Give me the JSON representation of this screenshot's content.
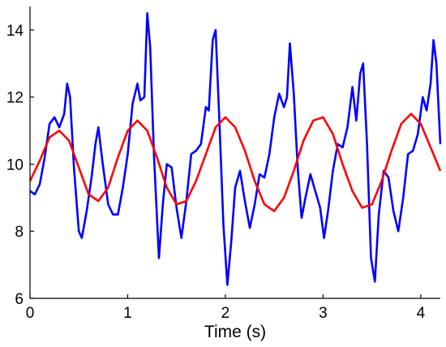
{
  "chart_data": {
    "type": "line",
    "title": "",
    "xlabel": "Time (s)",
    "ylabel": "",
    "xlim": [
      0,
      4.2
    ],
    "ylim": [
      6,
      14.7
    ],
    "x_ticks": [
      "0",
      "1",
      "2",
      "3",
      "4"
    ],
    "y_ticks": [
      "6",
      "8",
      "10",
      "12",
      "14"
    ],
    "grid": false,
    "legend": "none",
    "series": [
      {
        "color": "#0000ff",
        "points": [
          [
            0,
            9.2
          ],
          [
            0.05,
            9.1
          ],
          [
            0.1,
            9.4
          ],
          [
            0.15,
            10.2
          ],
          [
            0.2,
            11.2
          ],
          [
            0.25,
            11.4
          ],
          [
            0.3,
            11.1
          ],
          [
            0.35,
            11.5
          ],
          [
            0.38,
            12.4
          ],
          [
            0.41,
            12.0
          ],
          [
            0.45,
            9.9
          ],
          [
            0.5,
            8.0
          ],
          [
            0.53,
            7.8
          ],
          [
            0.58,
            8.6
          ],
          [
            0.63,
            9.6
          ],
          [
            0.67,
            10.6
          ],
          [
            0.7,
            11.1
          ],
          [
            0.74,
            10.1
          ],
          [
            0.8,
            8.8
          ],
          [
            0.85,
            8.5
          ],
          [
            0.9,
            8.5
          ],
          [
            0.95,
            9.3
          ],
          [
            1.0,
            10.3
          ],
          [
            1.05,
            11.8
          ],
          [
            1.1,
            12.4
          ],
          [
            1.13,
            11.9
          ],
          [
            1.17,
            12.0
          ],
          [
            1.2,
            14.5
          ],
          [
            1.23,
            13.5
          ],
          [
            1.27,
            10.2
          ],
          [
            1.32,
            7.2
          ],
          [
            1.36,
            8.8
          ],
          [
            1.4,
            10.0
          ],
          [
            1.45,
            9.9
          ],
          [
            1.5,
            8.7
          ],
          [
            1.55,
            7.8
          ],
          [
            1.6,
            8.9
          ],
          [
            1.65,
            10.3
          ],
          [
            1.7,
            10.4
          ],
          [
            1.75,
            10.6
          ],
          [
            1.8,
            11.7
          ],
          [
            1.83,
            11.6
          ],
          [
            1.87,
            13.7
          ],
          [
            1.9,
            14.0
          ],
          [
            1.94,
            11.2
          ],
          [
            1.98,
            8.2
          ],
          [
            2.02,
            6.4
          ],
          [
            2.06,
            7.7
          ],
          [
            2.1,
            9.3
          ],
          [
            2.15,
            9.8
          ],
          [
            2.2,
            8.9
          ],
          [
            2.25,
            8.1
          ],
          [
            2.3,
            8.8
          ],
          [
            2.35,
            9.7
          ],
          [
            2.4,
            9.6
          ],
          [
            2.45,
            10.3
          ],
          [
            2.5,
            11.4
          ],
          [
            2.55,
            12.1
          ],
          [
            2.6,
            11.7
          ],
          [
            2.63,
            12.0
          ],
          [
            2.66,
            13.6
          ],
          [
            2.7,
            12.1
          ],
          [
            2.74,
            9.9
          ],
          [
            2.78,
            8.4
          ],
          [
            2.82,
            9.0
          ],
          [
            2.87,
            9.7
          ],
          [
            2.92,
            9.2
          ],
          [
            2.97,
            8.7
          ],
          [
            3.01,
            7.8
          ],
          [
            3.05,
            8.6
          ],
          [
            3.1,
            9.8
          ],
          [
            3.15,
            10.6
          ],
          [
            3.2,
            10.5
          ],
          [
            3.25,
            11.1
          ],
          [
            3.3,
            12.3
          ],
          [
            3.34,
            11.3
          ],
          [
            3.38,
            12.7
          ],
          [
            3.41,
            13.0
          ],
          [
            3.45,
            10.6
          ],
          [
            3.49,
            7.2
          ],
          [
            3.53,
            6.5
          ],
          [
            3.57,
            8.5
          ],
          [
            3.62,
            9.8
          ],
          [
            3.67,
            9.6
          ],
          [
            3.72,
            8.6
          ],
          [
            3.77,
            8.0
          ],
          [
            3.82,
            9.0
          ],
          [
            3.87,
            10.3
          ],
          [
            3.92,
            10.4
          ],
          [
            3.97,
            10.9
          ],
          [
            4.02,
            12.0
          ],
          [
            4.06,
            11.6
          ],
          [
            4.1,
            12.4
          ],
          [
            4.13,
            13.7
          ],
          [
            4.16,
            13.0
          ],
          [
            4.2,
            10.6
          ]
        ]
      },
      {
        "color": "#ff0000",
        "points": [
          [
            0,
            9.5
          ],
          [
            0.1,
            10.1
          ],
          [
            0.2,
            10.8
          ],
          [
            0.3,
            11.0
          ],
          [
            0.4,
            10.7
          ],
          [
            0.5,
            9.9
          ],
          [
            0.6,
            9.1
          ],
          [
            0.7,
            8.9
          ],
          [
            0.8,
            9.3
          ],
          [
            0.9,
            10.2
          ],
          [
            1.0,
            11.0
          ],
          [
            1.1,
            11.3
          ],
          [
            1.2,
            11.0
          ],
          [
            1.3,
            10.2
          ],
          [
            1.4,
            9.3
          ],
          [
            1.5,
            8.8
          ],
          [
            1.6,
            8.9
          ],
          [
            1.7,
            9.5
          ],
          [
            1.8,
            10.3
          ],
          [
            1.9,
            11.1
          ],
          [
            2.0,
            11.4
          ],
          [
            2.1,
            11.1
          ],
          [
            2.2,
            10.4
          ],
          [
            2.3,
            9.5
          ],
          [
            2.4,
            8.8
          ],
          [
            2.5,
            8.6
          ],
          [
            2.6,
            9.0
          ],
          [
            2.7,
            9.8
          ],
          [
            2.8,
            10.7
          ],
          [
            2.9,
            11.3
          ],
          [
            3.0,
            11.4
          ],
          [
            3.1,
            10.9
          ],
          [
            3.2,
            10.0
          ],
          [
            3.3,
            9.2
          ],
          [
            3.4,
            8.7
          ],
          [
            3.5,
            8.8
          ],
          [
            3.6,
            9.5
          ],
          [
            3.7,
            10.4
          ],
          [
            3.8,
            11.2
          ],
          [
            3.9,
            11.5
          ],
          [
            4.0,
            11.2
          ],
          [
            4.1,
            10.5
          ],
          [
            4.2,
            9.8
          ]
        ]
      }
    ]
  }
}
